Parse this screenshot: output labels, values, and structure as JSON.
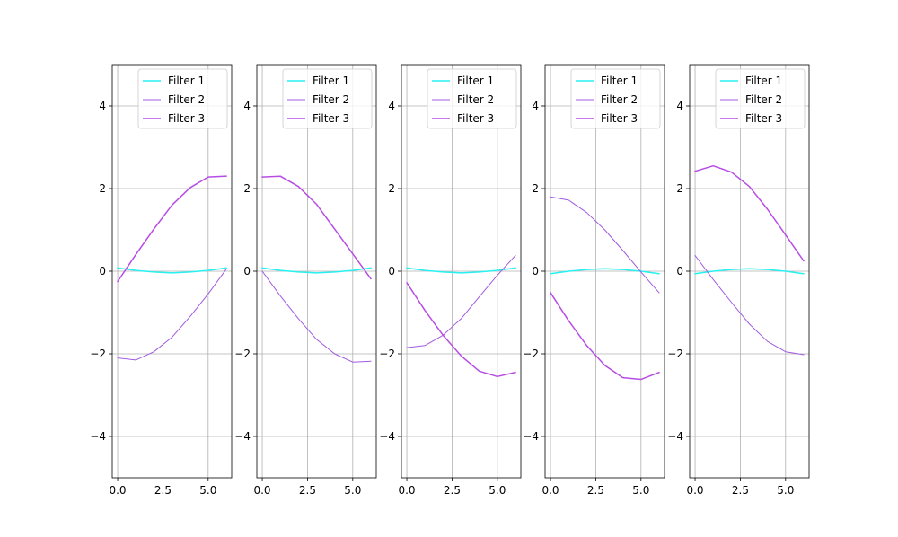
{
  "chart_data": {
    "type": "line",
    "layout": "5 side-by-side subplots",
    "grid": true,
    "legend_placement": "upper-right",
    "x_ticks": [
      0.0,
      2.5,
      5.0
    ],
    "x_tick_labels": [
      "0.0",
      "2.5",
      "5.0"
    ],
    "y_ticks": [
      -4,
      -2,
      0,
      2,
      4
    ],
    "y_tick_labels": [
      "−4",
      "−2",
      "0",
      "2",
      "4"
    ],
    "xlim": [
      -0.3,
      6.3
    ],
    "ylim": [
      -5,
      5
    ],
    "x": [
      0,
      1,
      2,
      3,
      4,
      5,
      6
    ],
    "series_names": [
      "Filter 1",
      "Filter 2",
      "Filter 3"
    ],
    "colors": [
      "#27f0f0",
      "#a05ae0",
      "#b64ce4"
    ],
    "line_widths": [
      1.5,
      1.0,
      1.5
    ],
    "subplots": [
      {
        "series": [
          {
            "name": "Filter 1",
            "values": [
              0.08,
              0.02,
              -0.02,
              -0.04,
              -0.02,
              0.02,
              0.08
            ]
          },
          {
            "name": "Filter 2",
            "values": [
              -2.1,
              -2.15,
              -1.95,
              -1.6,
              -1.1,
              -0.55,
              0.05
            ]
          },
          {
            "name": "Filter 3",
            "values": [
              -0.25,
              0.4,
              1.02,
              1.6,
              2.02,
              2.28,
              2.3
            ]
          }
        ]
      },
      {
        "series": [
          {
            "name": "Filter 1",
            "values": [
              0.08,
              0.02,
              -0.02,
              -0.04,
              -0.02,
              0.02,
              0.08
            ]
          },
          {
            "name": "Filter 2",
            "values": [
              0.0,
              -0.6,
              -1.15,
              -1.65,
              -2.0,
              -2.2,
              -2.18
            ]
          },
          {
            "name": "Filter 3",
            "values": [
              2.28,
              2.3,
              2.05,
              1.62,
              1.02,
              0.42,
              -0.18
            ]
          }
        ]
      },
      {
        "series": [
          {
            "name": "Filter 1",
            "values": [
              0.08,
              0.02,
              -0.02,
              -0.04,
              -0.02,
              0.02,
              0.08
            ]
          },
          {
            "name": "Filter 2",
            "values": [
              -1.85,
              -1.8,
              -1.55,
              -1.15,
              -0.62,
              -0.1,
              0.38
            ]
          },
          {
            "name": "Filter 3",
            "values": [
              -0.28,
              -0.95,
              -1.55,
              -2.05,
              -2.42,
              -2.55,
              -2.45
            ]
          }
        ]
      },
      {
        "series": [
          {
            "name": "Filter 1",
            "values": [
              -0.06,
              0.0,
              0.04,
              0.06,
              0.04,
              0.0,
              -0.06
            ]
          },
          {
            "name": "Filter 2",
            "values": [
              1.8,
              1.72,
              1.42,
              1.0,
              0.5,
              -0.02,
              -0.52
            ]
          },
          {
            "name": "Filter 3",
            "values": [
              -0.52,
              -1.2,
              -1.8,
              -2.28,
              -2.58,
              -2.62,
              -2.45
            ]
          }
        ]
      },
      {
        "series": [
          {
            "name": "Filter 1",
            "values": [
              -0.06,
              0.0,
              0.04,
              0.06,
              0.04,
              0.0,
              -0.06
            ]
          },
          {
            "name": "Filter 2",
            "values": [
              0.38,
              -0.2,
              -0.75,
              -1.28,
              -1.7,
              -1.95,
              -2.02
            ]
          },
          {
            "name": "Filter 3",
            "values": [
              2.42,
              2.55,
              2.4,
              2.05,
              1.5,
              0.88,
              0.25
            ]
          }
        ]
      }
    ]
  }
}
